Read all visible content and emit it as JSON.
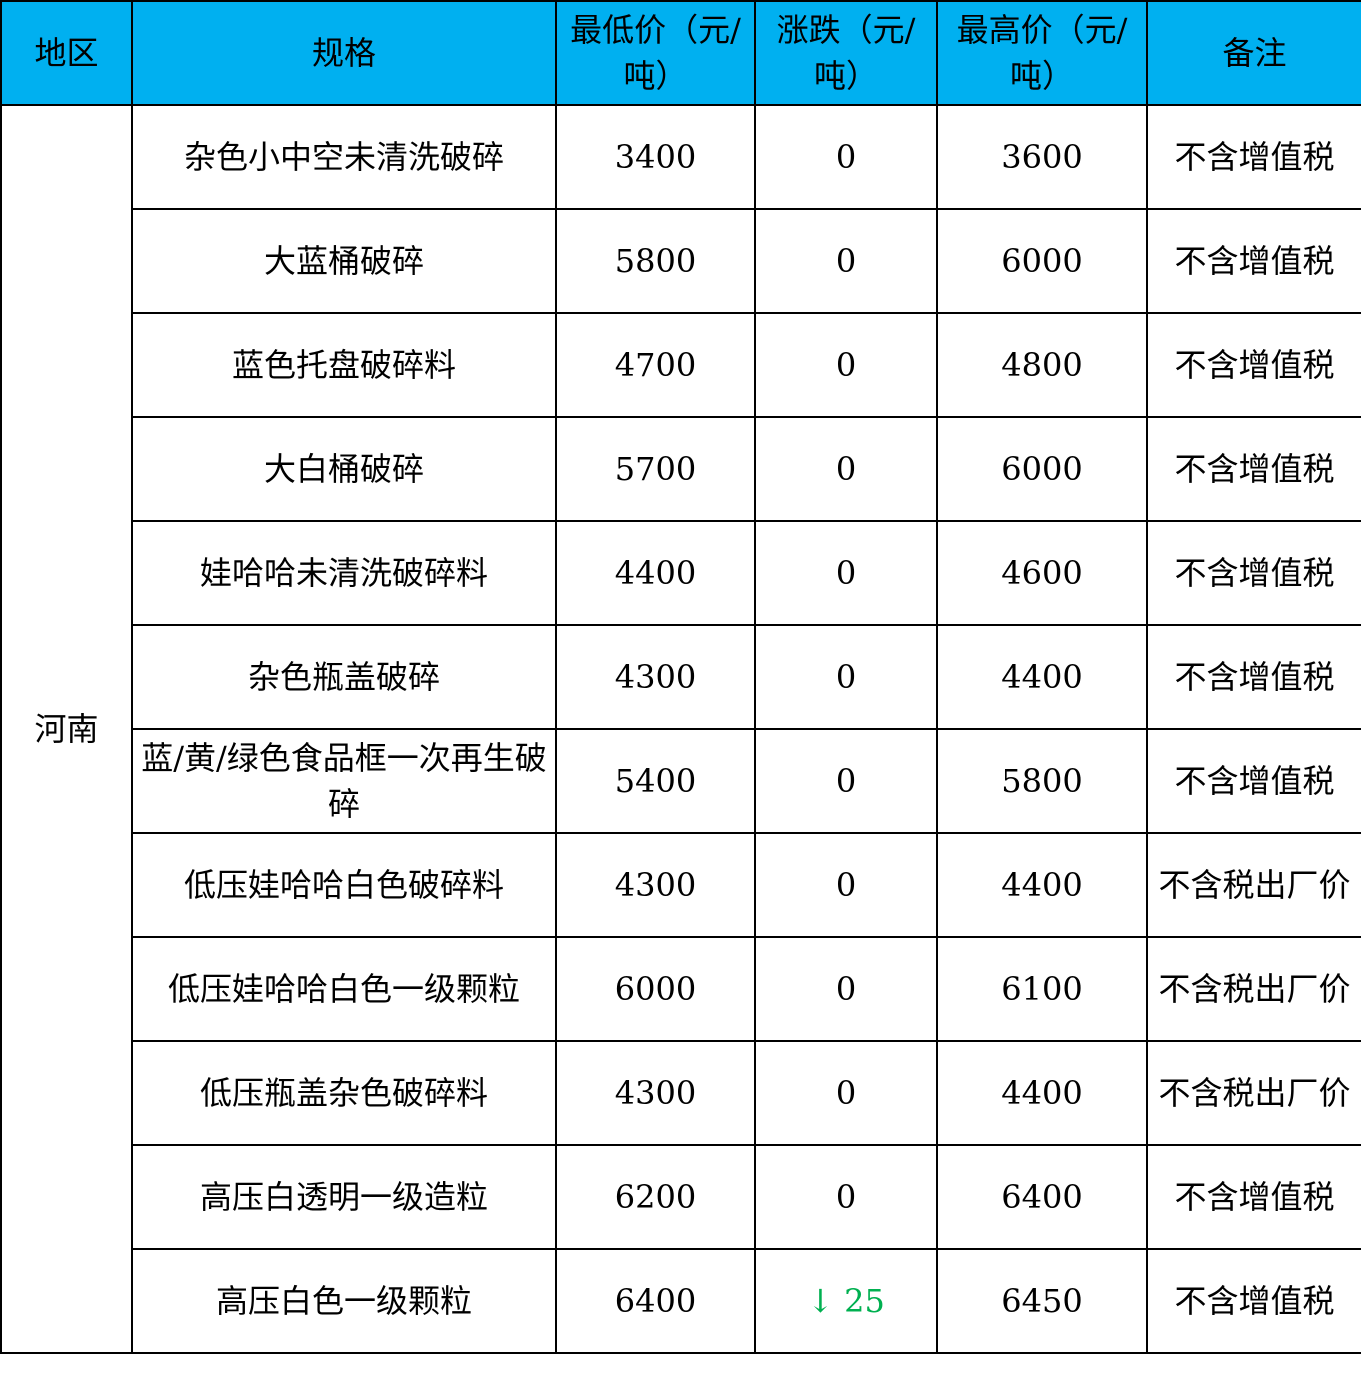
{
  "colors": {
    "header_bg": "#00B0F0",
    "down": "#00B050"
  },
  "headers": [
    "地区",
    "规格",
    "最低价（元/吨）",
    "涨跌（元/吨）",
    "最高价（元/吨）",
    "备注"
  ],
  "region": "河南",
  "rows": [
    {
      "spec": "杂色小中空未清洗破碎",
      "low": "3400",
      "change": "0",
      "high": "3600",
      "note": "不含增值税"
    },
    {
      "spec": "大蓝桶破碎",
      "low": "5800",
      "change": "0",
      "high": "6000",
      "note": "不含增值税"
    },
    {
      "spec": "蓝色托盘破碎料",
      "low": "4700",
      "change": "0",
      "high": "4800",
      "note": "不含增值税"
    },
    {
      "spec": "大白桶破碎",
      "low": "5700",
      "change": "0",
      "high": "6000",
      "note": "不含增值税"
    },
    {
      "spec": "娃哈哈未清洗破碎料",
      "low": "4400",
      "change": "0",
      "high": "4600",
      "note": "不含增值税"
    },
    {
      "spec": "杂色瓶盖破碎",
      "low": "4300",
      "change": "0",
      "high": "4400",
      "note": "不含增值税"
    },
    {
      "spec": "蓝/黄/绿色食品框一次再生破碎",
      "low": "5400",
      "change": "0",
      "high": "5800",
      "note": "不含增值税"
    },
    {
      "spec": "低压娃哈哈白色破碎料",
      "low": "4300",
      "change": "0",
      "high": "4400",
      "note": "不含税出厂价"
    },
    {
      "spec": "低压娃哈哈白色一级颗粒",
      "low": "6000",
      "change": "0",
      "high": "6100",
      "note": "不含税出厂价"
    },
    {
      "spec": "低压瓶盖杂色破碎料",
      "low": "4300",
      "change": "0",
      "high": "4400",
      "note": "不含税出厂价"
    },
    {
      "spec": "高压白透明一级造粒",
      "low": "6200",
      "change": "0",
      "high": "6400",
      "note": "不含增值税"
    },
    {
      "spec": "高压白色一级颗粒",
      "low": "6400",
      "change": "↓ 25",
      "change_direction": "down",
      "high": "6450",
      "note": "不含增值税"
    }
  ]
}
